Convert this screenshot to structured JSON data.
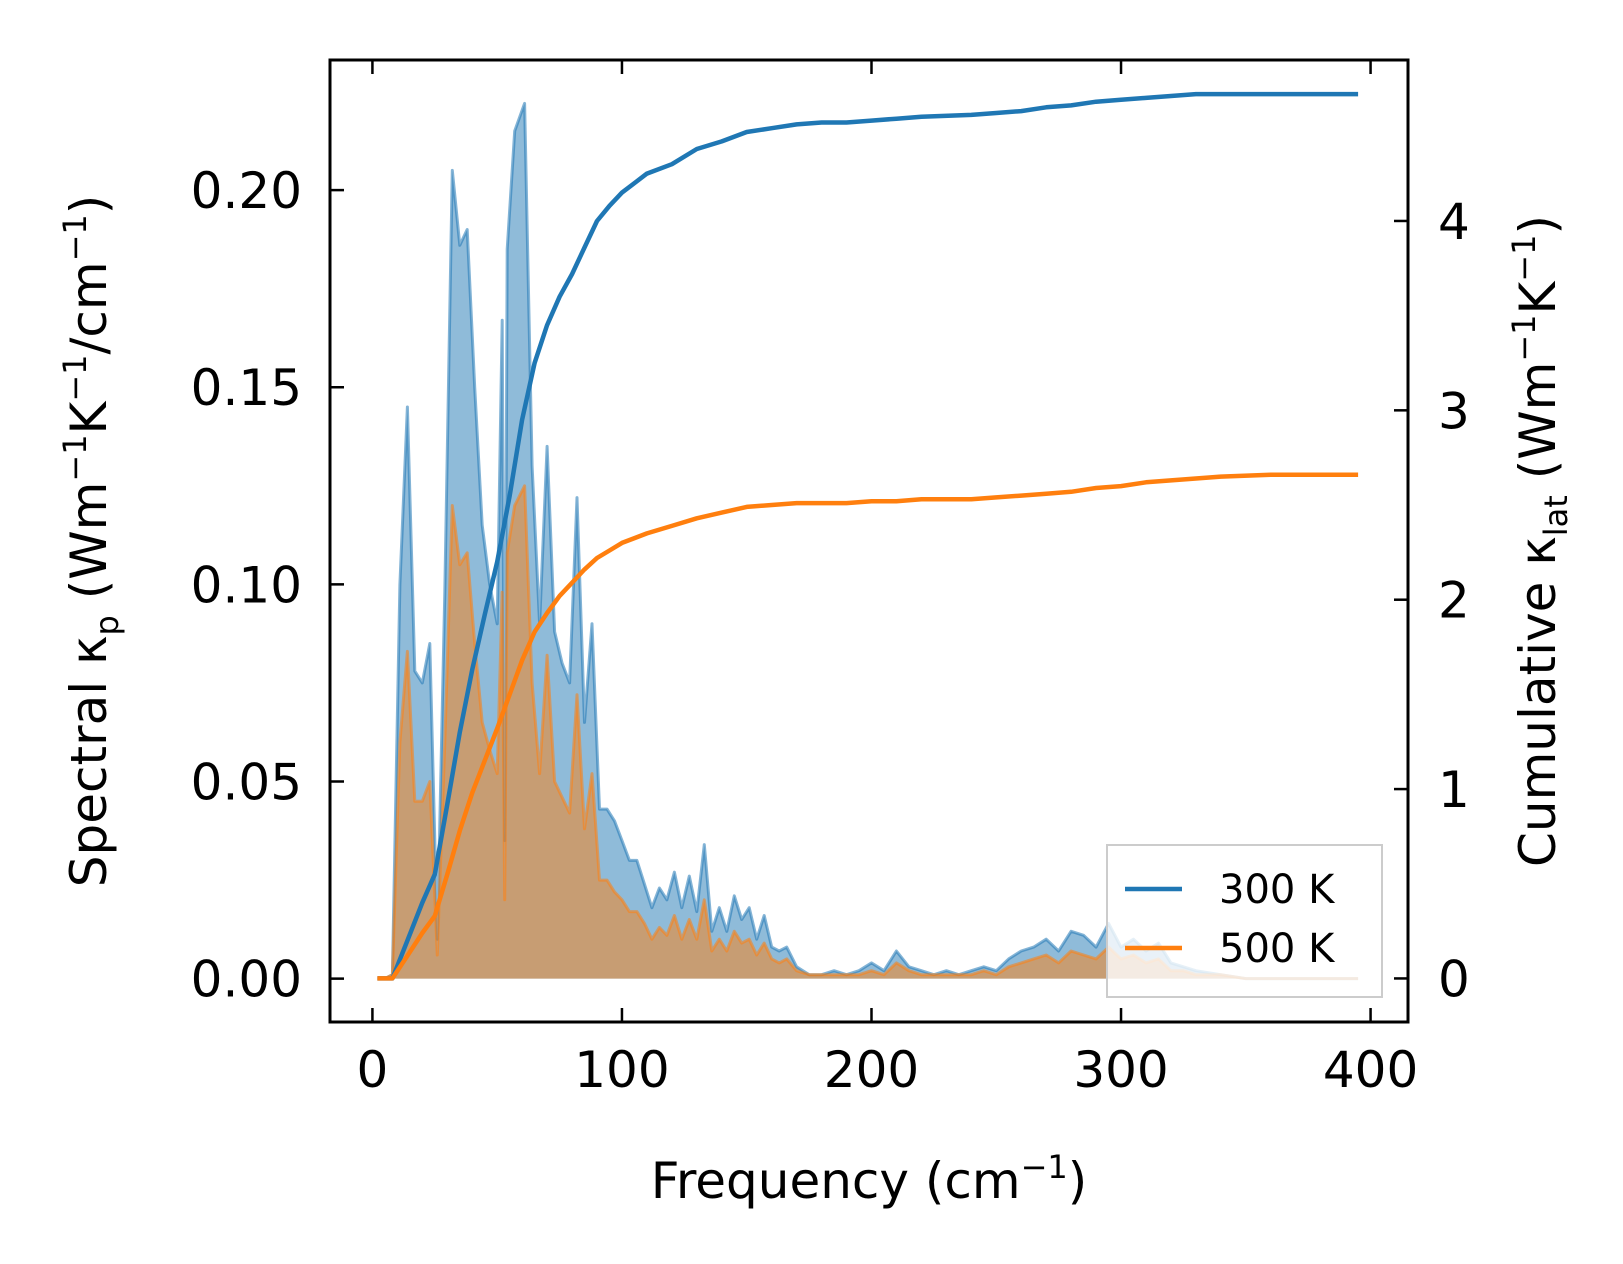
{
  "chart_data": {
    "type": "area",
    "xlabel": "Frequency (cm",
    "xlabel_sup": "−1",
    "xlabel_tail": ")",
    "ylabel_left": {
      "a": "Spectral κ",
      "sub": "p",
      "b": " (Wm",
      "sup1": "−1",
      "c": "K",
      "sup2": "−1",
      "d": "/cm",
      "sup3": "−1",
      "e": ")"
    },
    "ylabel_right": {
      "a": "Cumulative κ",
      "sub": "lat",
      "b": " (Wm",
      "sup1": "−1",
      "c": "K",
      "sup2": "−1",
      "d": ")"
    },
    "xlim": [
      -17,
      415
    ],
    "ylim_left": [
      -0.011,
      0.233
    ],
    "ylim_right": [
      -0.23,
      4.85
    ],
    "x_ticks": [
      0,
      100,
      200,
      300,
      400
    ],
    "x_tick_labels": [
      "0",
      "100",
      "200",
      "300",
      "400"
    ],
    "y_left_ticks": [
      0,
      0.05,
      0.1,
      0.15,
      0.2
    ],
    "y_left_tick_labels": [
      "0.00",
      "0.05",
      "0.10",
      "0.15",
      "0.20"
    ],
    "y_right_ticks": [
      0,
      1,
      2,
      3,
      4
    ],
    "y_right_tick_labels": [
      "0",
      "1",
      "2",
      "3",
      "4"
    ],
    "series": [
      {
        "name": "300 K",
        "color": "#1f77b4",
        "fill_color": "#1f77b4",
        "spectral": {
          "x": [
            2,
            5,
            8,
            11,
            14,
            17,
            20,
            23,
            26,
            29,
            32,
            35,
            38,
            41,
            44,
            47,
            50,
            52,
            53,
            54,
            57,
            61,
            64,
            67,
            70,
            73,
            76,
            79,
            82,
            85,
            88,
            91,
            94,
            97,
            100,
            103,
            106,
            109,
            112,
            115,
            118,
            121,
            124,
            127,
            130,
            133,
            136,
            139,
            142,
            145,
            148,
            151,
            154,
            157,
            160,
            163,
            166,
            170,
            175,
            180,
            185,
            190,
            195,
            200,
            205,
            210,
            215,
            220,
            225,
            230,
            235,
            240,
            245,
            250,
            255,
            260,
            265,
            270,
            275,
            280,
            285,
            290,
            295,
            300,
            305,
            310,
            315,
            320,
            325,
            330,
            340,
            350,
            360,
            370,
            380,
            395
          ],
          "y": [
            0,
            0,
            0.001,
            0.1,
            0.145,
            0.078,
            0.075,
            0.085,
            0.01,
            0.098,
            0.205,
            0.186,
            0.19,
            0.15,
            0.115,
            0.1,
            0.09,
            0.167,
            0.035,
            0.185,
            0.215,
            0.222,
            0.13,
            0.09,
            0.135,
            0.088,
            0.08,
            0.075,
            0.122,
            0.065,
            0.09,
            0.043,
            0.043,
            0.04,
            0.035,
            0.03,
            0.03,
            0.024,
            0.018,
            0.023,
            0.02,
            0.027,
            0.018,
            0.026,
            0.017,
            0.034,
            0.012,
            0.018,
            0.012,
            0.021,
            0.015,
            0.018,
            0.01,
            0.016,
            0.008,
            0.007,
            0.008,
            0.003,
            0.001,
            0.001,
            0.002,
            0.001,
            0.002,
            0.004,
            0.002,
            0.007,
            0.003,
            0.002,
            0.001,
            0.002,
            0.001,
            0.002,
            0.003,
            0.002,
            0.005,
            0.007,
            0.008,
            0.01,
            0.007,
            0.012,
            0.011,
            0.008,
            0.014,
            0.008,
            0.01,
            0.007,
            0.009,
            0.004,
            0.003,
            0.002,
            0.001,
            0,
            0,
            0,
            0,
            0
          ]
        },
        "cumulative": {
          "x": [
            2,
            8,
            14,
            20,
            25,
            30,
            35,
            40,
            45,
            50,
            55,
            60,
            65,
            70,
            75,
            80,
            85,
            90,
            95,
            100,
            110,
            120,
            130,
            140,
            150,
            160,
            170,
            180,
            190,
            200,
            210,
            220,
            240,
            250,
            260,
            270,
            280,
            290,
            300,
            310,
            320,
            330,
            340,
            360,
            380,
            395
          ],
          "y": [
            0,
            0,
            0.2,
            0.4,
            0.55,
            0.92,
            1.3,
            1.63,
            1.92,
            2.2,
            2.55,
            2.95,
            3.25,
            3.45,
            3.6,
            3.72,
            3.86,
            4.0,
            4.08,
            4.15,
            4.25,
            4.3,
            4.38,
            4.42,
            4.47,
            4.49,
            4.51,
            4.52,
            4.52,
            4.53,
            4.54,
            4.55,
            4.56,
            4.57,
            4.58,
            4.6,
            4.61,
            4.63,
            4.64,
            4.65,
            4.66,
            4.67,
            4.67,
            4.67,
            4.67,
            4.67
          ]
        }
      },
      {
        "name": "500 K",
        "color": "#ff7f0e",
        "fill_color": "#ff7f0e",
        "spectral": {
          "x": [
            2,
            5,
            8,
            11,
            14,
            17,
            20,
            23,
            26,
            29,
            32,
            35,
            38,
            41,
            44,
            47,
            50,
            52,
            53,
            54,
            57,
            61,
            64,
            67,
            70,
            73,
            76,
            79,
            82,
            85,
            88,
            91,
            94,
            97,
            100,
            103,
            106,
            109,
            112,
            115,
            118,
            121,
            124,
            127,
            130,
            133,
            136,
            139,
            142,
            145,
            148,
            151,
            154,
            157,
            160,
            163,
            166,
            170,
            175,
            180,
            185,
            190,
            195,
            200,
            205,
            210,
            215,
            220,
            225,
            230,
            235,
            240,
            245,
            250,
            255,
            260,
            265,
            270,
            275,
            280,
            285,
            290,
            295,
            300,
            305,
            310,
            315,
            320,
            325,
            330,
            340,
            350,
            360,
            370,
            380,
            395
          ],
          "y": [
            0,
            0,
            0.001,
            0.06,
            0.083,
            0.045,
            0.045,
            0.05,
            0.006,
            0.06,
            0.12,
            0.105,
            0.108,
            0.085,
            0.065,
            0.058,
            0.052,
            0.098,
            0.02,
            0.108,
            0.12,
            0.125,
            0.075,
            0.052,
            0.082,
            0.05,
            0.046,
            0.042,
            0.072,
            0.038,
            0.052,
            0.025,
            0.025,
            0.022,
            0.02,
            0.017,
            0.017,
            0.014,
            0.01,
            0.013,
            0.011,
            0.016,
            0.01,
            0.015,
            0.01,
            0.02,
            0.007,
            0.01,
            0.007,
            0.012,
            0.009,
            0.01,
            0.006,
            0.009,
            0.005,
            0.004,
            0.005,
            0.002,
            0.001,
            0.001,
            0.001,
            0.001,
            0.001,
            0.002,
            0.001,
            0.004,
            0.002,
            0.001,
            0.001,
            0.001,
            0.001,
            0.001,
            0.002,
            0.001,
            0.003,
            0.004,
            0.005,
            0.006,
            0.004,
            0.007,
            0.006,
            0.005,
            0.008,
            0.005,
            0.006,
            0.004,
            0.005,
            0.002,
            0.002,
            0.001,
            0.001,
            0,
            0,
            0,
            0,
            0
          ]
        },
        "cumulative": {
          "x": [
            2,
            8,
            14,
            20,
            25,
            30,
            35,
            40,
            45,
            50,
            55,
            60,
            65,
            70,
            75,
            80,
            85,
            90,
            95,
            100,
            110,
            120,
            130,
            140,
            150,
            160,
            170,
            180,
            190,
            200,
            210,
            220,
            240,
            250,
            260,
            270,
            280,
            290,
            300,
            310,
            320,
            330,
            340,
            360,
            380,
            395
          ],
          "y": [
            0,
            0,
            0.12,
            0.24,
            0.33,
            0.55,
            0.78,
            0.98,
            1.15,
            1.32,
            1.5,
            1.68,
            1.83,
            1.93,
            2.02,
            2.09,
            2.16,
            2.22,
            2.26,
            2.3,
            2.35,
            2.39,
            2.43,
            2.46,
            2.49,
            2.5,
            2.51,
            2.51,
            2.51,
            2.52,
            2.52,
            2.53,
            2.53,
            2.54,
            2.55,
            2.56,
            2.57,
            2.59,
            2.6,
            2.62,
            2.63,
            2.64,
            2.65,
            2.66,
            2.66,
            2.66
          ]
        }
      }
    ],
    "legend_position": "lower-right"
  }
}
